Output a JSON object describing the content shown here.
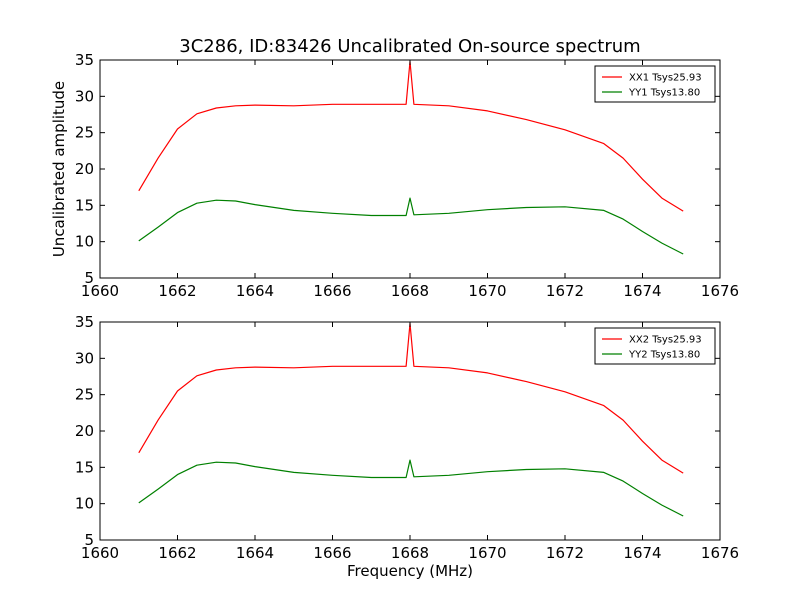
{
  "figure": {
    "title": "3C286, ID:83426 Uncalibrated On-source spectrum",
    "ylabel": "Uncalibrated amplitude",
    "xlabel": "Frequency (MHz)"
  },
  "colors": {
    "xx": "#ff0000",
    "yy": "#008000",
    "axes": "#000000",
    "background": "#ffffff"
  },
  "chart_data": [
    {
      "type": "line",
      "xlim": [
        1660,
        1676
      ],
      "ylim": [
        5,
        35
      ],
      "xticks": [
        1660,
        1662,
        1664,
        1666,
        1668,
        1670,
        1672,
        1674,
        1676
      ],
      "yticks": [
        5,
        10,
        15,
        20,
        25,
        30,
        35
      ],
      "legend_position": "top-right",
      "xlabel": "",
      "ylabel": "Uncalibrated amplitude",
      "series": [
        {
          "name": "XX1 Tsys25.93",
          "color": "#ff0000",
          "x": [
            1661,
            1661.5,
            1662,
            1662.5,
            1663,
            1663.5,
            1664,
            1665,
            1666,
            1667,
            1667.9,
            1668.0,
            1668.1,
            1669,
            1670,
            1671,
            1672,
            1673,
            1673.5,
            1674,
            1674.5,
            1675.05
          ],
          "y": [
            17.0,
            21.5,
            25.5,
            27.6,
            28.4,
            28.7,
            28.8,
            28.7,
            28.9,
            28.9,
            28.9,
            34.8,
            28.9,
            28.7,
            28.0,
            26.8,
            25.4,
            23.5,
            21.5,
            18.6,
            16.0,
            14.2
          ]
        },
        {
          "name": "YY1 Tsys13.80",
          "color": "#008000",
          "x": [
            1661,
            1661.5,
            1662,
            1662.5,
            1663,
            1663.5,
            1664,
            1665,
            1666,
            1667,
            1667.9,
            1668.0,
            1668.1,
            1669,
            1670,
            1671,
            1672,
            1673,
            1673.5,
            1674,
            1674.5,
            1675.05
          ],
          "y": [
            10.1,
            12.0,
            14.0,
            15.3,
            15.7,
            15.6,
            15.1,
            14.3,
            13.9,
            13.6,
            13.6,
            16.0,
            13.7,
            13.9,
            14.4,
            14.7,
            14.8,
            14.3,
            13.1,
            11.4,
            9.8,
            8.3
          ]
        }
      ]
    },
    {
      "type": "line",
      "xlim": [
        1660,
        1676
      ],
      "ylim": [
        5,
        35
      ],
      "xticks": [
        1660,
        1662,
        1664,
        1666,
        1668,
        1670,
        1672,
        1674,
        1676
      ],
      "yticks": [
        5,
        10,
        15,
        20,
        25,
        30,
        35
      ],
      "legend_position": "top-right",
      "xlabel": "Frequency (MHz)",
      "ylabel": "",
      "series": [
        {
          "name": "XX2 Tsys25.93",
          "color": "#ff0000",
          "x": [
            1661,
            1661.5,
            1662,
            1662.5,
            1663,
            1663.5,
            1664,
            1665,
            1666,
            1667,
            1667.9,
            1668.0,
            1668.1,
            1669,
            1670,
            1671,
            1672,
            1673,
            1673.5,
            1674,
            1674.5,
            1675.05
          ],
          "y": [
            17.0,
            21.5,
            25.5,
            27.6,
            28.4,
            28.7,
            28.8,
            28.7,
            28.9,
            28.9,
            28.9,
            34.8,
            28.9,
            28.7,
            28.0,
            26.8,
            25.4,
            23.5,
            21.5,
            18.6,
            16.0,
            14.2
          ]
        },
        {
          "name": "YY2 Tsys13.80",
          "color": "#008000",
          "x": [
            1661,
            1661.5,
            1662,
            1662.5,
            1663,
            1663.5,
            1664,
            1665,
            1666,
            1667,
            1667.9,
            1668.0,
            1668.1,
            1669,
            1670,
            1671,
            1672,
            1673,
            1673.5,
            1674,
            1674.5,
            1675.05
          ],
          "y": [
            10.1,
            12.0,
            14.0,
            15.3,
            15.7,
            15.6,
            15.1,
            14.3,
            13.9,
            13.6,
            13.6,
            16.0,
            13.7,
            13.9,
            14.4,
            14.7,
            14.8,
            14.3,
            13.1,
            11.4,
            9.8,
            8.3
          ]
        }
      ]
    }
  ]
}
